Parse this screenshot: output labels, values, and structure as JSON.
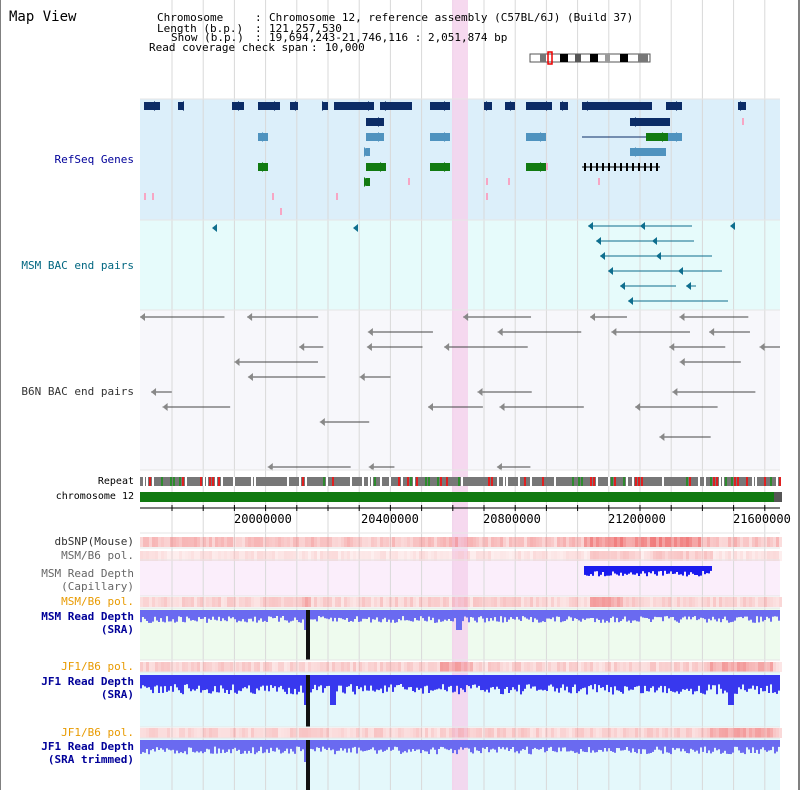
{
  "view_title": "Map View",
  "info": {
    "chromosome_label": "Chromosome",
    "chromosome_value": "Chromosome 12, reference assembly (C57BL/6J) (Build 37)",
    "length_label": "Length (b.p.)",
    "length_value": "121,257,530",
    "show_label": "Show (b.p.)",
    "show_value": "19,694,243-21,746,116 : 2,051,874 bp",
    "span_label": "Read coverage check span",
    "span_value": "10,000"
  },
  "tracks": {
    "refseq": "RefSeq Genes",
    "msm_bac": "MSM BAC end pairs",
    "b6n_bac": "B6N BAC end pairs",
    "repeat": "Repeat",
    "chromosome": "chromosome 12",
    "dbsnp": "dbSNP(Mouse)",
    "msm_b6_pol_1": "MSM/B6 pol.",
    "msm_depth_cap_1": "MSM Read Depth",
    "msm_depth_cap_2": "(Capillary)",
    "msm_b6_pol_2": "MSM/B6 pol.",
    "msm_depth_sra_1": "MSM Read Depth",
    "msm_depth_sra_2": "(SRA)",
    "jf1_b6_pol_1": "JF1/B6 pol.",
    "jf1_depth_sra_1": "JF1 Read Depth",
    "jf1_depth_sra_2": "(SRA)",
    "jf1_b6_pol_2": "JF1/B6 pol.",
    "jf1_depth_trim_1": "JF1 Read Depth",
    "jf1_depth_trim_2": "(SRA trimmed)"
  },
  "axis": {
    "ticks": [
      "20000000",
      "20400000",
      "20800000",
      "21200000",
      "21600000"
    ]
  },
  "colors": {
    "refseq_bg": "#dceffa",
    "bac_bg": "#e6fbfb",
    "gene_navy": "#0b2c66",
    "gene_blue": "#4f93bf",
    "gene_green": "#117a11",
    "highlight": "#f5d2ec",
    "label_blue": "#000099",
    "label_orange": "#e89a00",
    "label_teal": "#006680"
  }
}
